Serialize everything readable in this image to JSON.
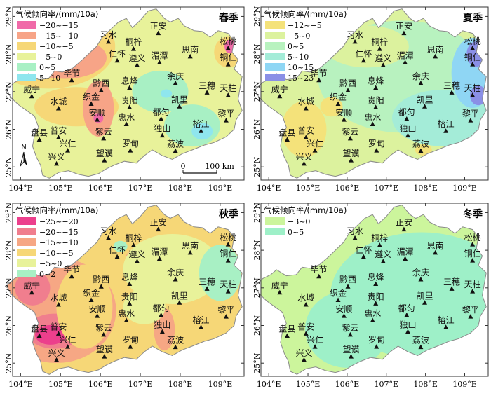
{
  "panels": [
    {
      "season": "春季",
      "legend_title": "气候倾向率/(mm/10a)",
      "legend": [
        {
          "label": "−20~−15",
          "color": "#f06aa8"
        },
        {
          "label": "−15~−10",
          "color": "#f7a487"
        },
        {
          "label": "−10~−5",
          "color": "#f6d777"
        },
        {
          "label": "−5~0",
          "color": "#e8f29a"
        },
        {
          "label": "0~5",
          "color": "#a8f0c4"
        },
        {
          "label": "5~10",
          "color": "#8fe6ee"
        }
      ],
      "show_north": true,
      "north_label": "N",
      "scale_start": "0",
      "scale_end": "100 km"
    },
    {
      "season": "夏季",
      "legend_title": "气候倾向率/(mm/10a)",
      "legend": [
        {
          "label": "−12~−5",
          "color": "#f4e27a"
        },
        {
          "label": "−5~0",
          "color": "#dcf29e"
        },
        {
          "label": "0~5",
          "color": "#b8f2bf"
        },
        {
          "label": "5~10",
          "color": "#a4ecd8"
        },
        {
          "label": "10~15",
          "color": "#8fd6f4"
        },
        {
          "label": "15~23",
          "color": "#8a8fe6"
        }
      ]
    },
    {
      "season": "秋季",
      "legend_title": "气候倾向率/(mm/10a)",
      "legend": [
        {
          "label": "−25~−20",
          "color": "#ec3f8c"
        },
        {
          "label": "−20~−15",
          "color": "#f07e8e"
        },
        {
          "label": "−15~−10",
          "color": "#f6a784"
        },
        {
          "label": "−10~−5",
          "color": "#f6d777"
        },
        {
          "label": "−5~0",
          "color": "#e8f29a"
        },
        {
          "label": "0~2",
          "color": "#a8f0c4"
        }
      ]
    },
    {
      "season": "冬季",
      "legend_title": "气候倾向率/(mm/10a)",
      "legend": [
        {
          "label": "−3~0",
          "color": "#ccf59c"
        },
        {
          "label": "0~5",
          "color": "#9ef0c8"
        }
      ]
    }
  ],
  "axes": {
    "x_ticks": [
      "104°E",
      "105°E",
      "106°E",
      "107°E",
      "108°E",
      "109°E"
    ],
    "y_ticks": [
      "29°N",
      "28°N",
      "27°N",
      "26°N",
      "25°N"
    ]
  },
  "stations": [
    {
      "name": "习水",
      "lon": 106.2,
      "lat": 28.32
    },
    {
      "name": "正安",
      "lon": 107.45,
      "lat": 28.55
    },
    {
      "name": "桐梓",
      "lon": 106.83,
      "lat": 28.13
    },
    {
      "name": "松桃",
      "lon": 109.2,
      "lat": 28.15
    },
    {
      "name": "仁怀",
      "lon": 106.42,
      "lat": 27.82
    },
    {
      "name": "遵义",
      "lon": 106.92,
      "lat": 27.7
    },
    {
      "name": "湄潭",
      "lon": 107.48,
      "lat": 27.77
    },
    {
      "name": "思南",
      "lon": 108.25,
      "lat": 27.93
    },
    {
      "name": "铜仁",
      "lon": 109.2,
      "lat": 27.72
    },
    {
      "name": "毕节",
      "lon": 105.28,
      "lat": 27.3
    },
    {
      "name": "黔西",
      "lon": 106.02,
      "lat": 27.03
    },
    {
      "name": "息烽",
      "lon": 106.73,
      "lat": 27.1
    },
    {
      "name": "余庆",
      "lon": 107.88,
      "lat": 27.22
    },
    {
      "name": "三穗",
      "lon": 108.67,
      "lat": 26.97
    },
    {
      "name": "威宁",
      "lon": 104.28,
      "lat": 26.87
    },
    {
      "name": "天柱",
      "lon": 109.2,
      "lat": 26.9
    },
    {
      "name": "织金",
      "lon": 105.77,
      "lat": 26.67
    },
    {
      "name": "水城",
      "lon": 104.95,
      "lat": 26.55
    },
    {
      "name": "贵阳",
      "lon": 106.73,
      "lat": 26.58
    },
    {
      "name": "凯里",
      "lon": 107.98,
      "lat": 26.6
    },
    {
      "name": "安顺",
      "lon": 105.92,
      "lat": 26.25
    },
    {
      "name": "惠水",
      "lon": 106.65,
      "lat": 26.13
    },
    {
      "name": "都匀",
      "lon": 107.52,
      "lat": 26.27
    },
    {
      "name": "黎平",
      "lon": 109.15,
      "lat": 26.23
    },
    {
      "name": "紫云",
      "lon": 106.08,
      "lat": 25.75
    },
    {
      "name": "独山",
      "lon": 107.55,
      "lat": 25.83
    },
    {
      "name": "榕江",
      "lon": 108.52,
      "lat": 25.95
    },
    {
      "name": "盘县",
      "lon": 104.47,
      "lat": 25.72
    },
    {
      "name": "普安",
      "lon": 104.95,
      "lat": 25.78
    },
    {
      "name": "兴仁",
      "lon": 105.18,
      "lat": 25.43
    },
    {
      "name": "罗甸",
      "lon": 106.75,
      "lat": 25.43
    },
    {
      "name": "荔波",
      "lon": 107.88,
      "lat": 25.42
    },
    {
      "name": "兴义",
      "lon": 104.9,
      "lat": 25.08
    },
    {
      "name": "望谟",
      "lon": 106.1,
      "lat": 25.17
    }
  ]
}
